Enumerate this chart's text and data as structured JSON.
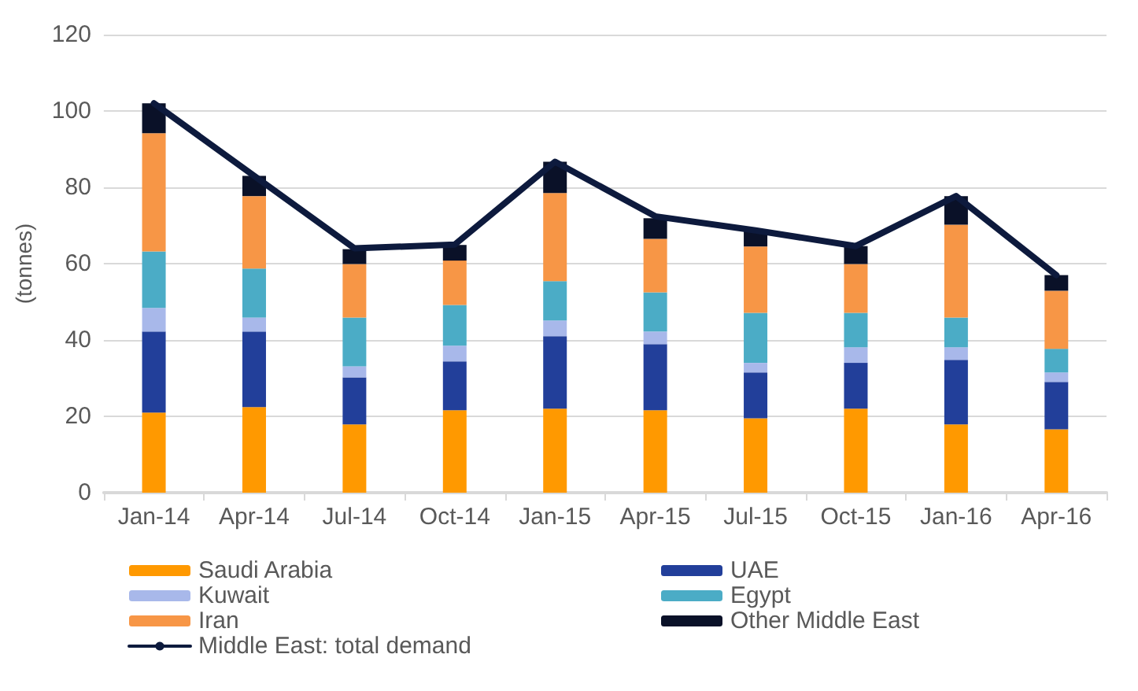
{
  "chart_data": {
    "type": "bar",
    "stacked": true,
    "ylabel": "(tonnes)",
    "categories": [
      "Jan-14",
      "Apr-14",
      "Jul-14",
      "Oct-14",
      "Jan-15",
      "Apr-15",
      "Jul-15",
      "Oct-15",
      "Jan-16",
      "Apr-16"
    ],
    "series": [
      {
        "name": "Saudi Arabia",
        "color": "#ff9900",
        "values": [
          21,
          22.4,
          17.9,
          21.6,
          22,
          21.6,
          19.5,
          22,
          17.9,
          16.6
        ]
      },
      {
        "name": "UAE",
        "color": "#223f9a",
        "values": [
          21.2,
          19.8,
          12.3,
          12.8,
          19,
          17.3,
          12,
          12,
          16.9,
          12.4
        ]
      },
      {
        "name": "Kuwait",
        "color": "#a8b8ea",
        "values": [
          6.2,
          3.7,
          2.9,
          4.1,
          4.1,
          3.3,
          2.5,
          4.1,
          3.3,
          2.5
        ]
      },
      {
        "name": "Egypt",
        "color": "#4bacc6",
        "values": [
          14.8,
          12.8,
          12.8,
          10.7,
          10.3,
          10.3,
          13.1,
          9,
          7.8,
          6.2
        ]
      },
      {
        "name": "Iran",
        "color": "#f79646",
        "values": [
          31,
          19,
          14,
          11.6,
          23.1,
          14,
          17.4,
          12.8,
          24.3,
          15.2
        ]
      },
      {
        "name": "Other Middle East",
        "color": "#0a1128",
        "values": [
          7.8,
          5.3,
          3.9,
          4.1,
          8.2,
          5.4,
          4.1,
          4.7,
          7.5,
          4.1
        ]
      },
      {
        "name": "Middle East: total demand",
        "type": "line",
        "color": "#0d1a3d",
        "marker": "none",
        "values": [
          102,
          83,
          64,
          65,
          86.7,
          72.4,
          68.7,
          64.6,
          77.7,
          57
        ]
      }
    ],
    "ylim": [
      0,
      120
    ],
    "yticks": [
      0,
      20,
      40,
      60,
      80,
      100,
      120
    ],
    "grid": "y",
    "legend": "bottom"
  }
}
